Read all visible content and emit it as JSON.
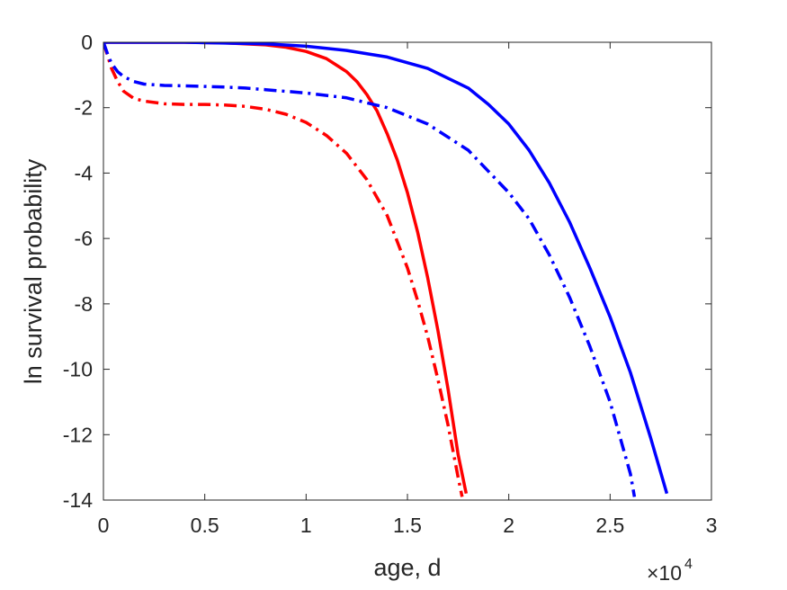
{
  "chart_data": {
    "type": "line",
    "xlabel": "age, d",
    "ylabel": "ln survival probability",
    "x_exponent_label": "×10",
    "x_exponent_power": "4",
    "xlim": [
      0,
      30000
    ],
    "ylim": [
      -14,
      0
    ],
    "x_ticks": [
      0,
      5000,
      10000,
      15000,
      20000,
      25000,
      30000
    ],
    "x_tick_labels": [
      "0",
      "0.5",
      "1",
      "1.5",
      "2",
      "2.5",
      "3"
    ],
    "y_ticks": [
      0,
      -2,
      -4,
      -6,
      -8,
      -10,
      -12,
      -14
    ],
    "y_tick_labels": [
      "0",
      "-2",
      "-4",
      "-6",
      "-8",
      "-10",
      "-12",
      "-14"
    ],
    "grid": false,
    "series": [
      {
        "color": "#ff0000",
        "style": "solid",
        "x": [
          0,
          2000,
          4000,
          6000,
          8000,
          9000,
          10000,
          11000,
          12000,
          12500,
          13000,
          13500,
          14000,
          14500,
          15000,
          15500,
          16000,
          16500,
          17000,
          17500,
          17900
        ],
        "y": [
          0,
          0,
          0,
          -0.02,
          -0.08,
          -0.15,
          -0.28,
          -0.5,
          -0.9,
          -1.2,
          -1.6,
          -2.1,
          -2.8,
          -3.6,
          -4.6,
          -5.8,
          -7.2,
          -8.8,
          -10.6,
          -12.6,
          -13.8
        ]
      },
      {
        "color": "#ff0000",
        "style": "dashdot",
        "x": [
          0,
          200,
          400,
          700,
          1000,
          1500,
          2000,
          3000,
          4000,
          5000,
          6000,
          7000,
          8000,
          9000,
          10000,
          11000,
          12000,
          13000,
          14000,
          15000,
          15500,
          16000,
          16500,
          17000,
          17500,
          17700
        ],
        "y": [
          0,
          -0.4,
          -0.8,
          -1.2,
          -1.5,
          -1.72,
          -1.8,
          -1.88,
          -1.9,
          -1.9,
          -1.92,
          -1.96,
          -2.05,
          -2.2,
          -2.45,
          -2.85,
          -3.4,
          -4.2,
          -5.3,
          -6.9,
          -7.9,
          -9.0,
          -10.3,
          -11.7,
          -13.3,
          -13.9
        ]
      },
      {
        "color": "#0000ff",
        "style": "solid",
        "x": [
          0,
          4000,
          8000,
          10000,
          12000,
          14000,
          16000,
          18000,
          19000,
          20000,
          21000,
          22000,
          23000,
          24000,
          25000,
          26000,
          27000,
          27800
        ],
        "y": [
          0,
          0,
          -0.05,
          -0.12,
          -0.25,
          -0.45,
          -0.8,
          -1.4,
          -1.9,
          -2.5,
          -3.3,
          -4.3,
          -5.5,
          -6.9,
          -8.4,
          -10.1,
          -12.1,
          -13.8
        ]
      },
      {
        "color": "#0000ff",
        "style": "dashdot",
        "x": [
          0,
          200,
          400,
          700,
          1000,
          1500,
          2000,
          3000,
          4000,
          5000,
          6000,
          7000,
          8000,
          10000,
          12000,
          13000,
          14000,
          16000,
          18000,
          20000,
          21000,
          22000,
          23000,
          24000,
          25000,
          26000,
          26200
        ],
        "y": [
          0,
          -0.35,
          -0.65,
          -0.9,
          -1.05,
          -1.2,
          -1.28,
          -1.32,
          -1.33,
          -1.35,
          -1.37,
          -1.4,
          -1.45,
          -1.55,
          -1.7,
          -1.85,
          -2.0,
          -2.5,
          -3.3,
          -4.6,
          -5.4,
          -6.5,
          -7.8,
          -9.3,
          -11.0,
          -13.2,
          -13.9
        ]
      }
    ]
  }
}
